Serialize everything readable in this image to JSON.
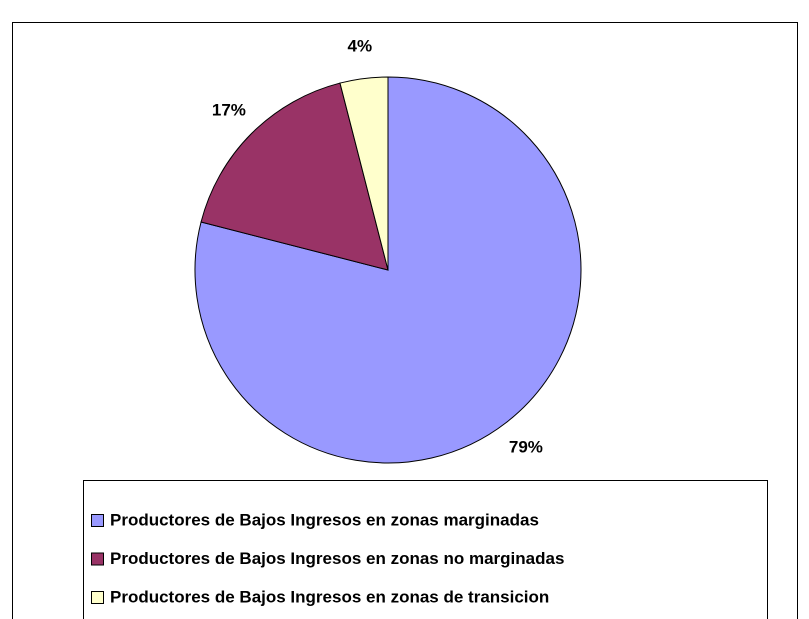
{
  "chart_data": {
    "type": "pie",
    "categories": [
      "Productores de Bajos Ingresos en zonas marginadas",
      "Productores de Bajos Ingresos en zonas no marginadas",
      "Productores de Bajos Ingresos en zonas de transicion"
    ],
    "values": [
      79,
      17,
      4
    ],
    "value_labels": [
      "79%",
      "17%",
      "4%"
    ],
    "colors": [
      "#9999ff",
      "#993366",
      "#ffffcc"
    ],
    "legend": "bottom"
  }
}
